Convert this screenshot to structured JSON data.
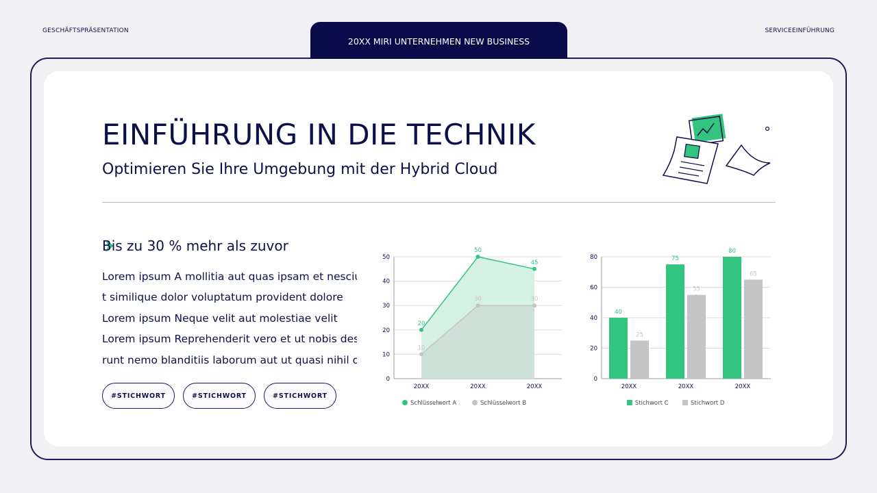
{
  "header": {
    "left_label": "GESCHÄFTSPRÄSENTATION",
    "tab_label": "20XX MIRI UNTERNEHMEN NEW BUSINESS",
    "right_label": "SERVICEEINFÜHRUNG"
  },
  "main": {
    "title": "EINFÜHRUNG IN DIE TECHNIK",
    "subtitle": "Optimieren Sie Ihre Umgebung mit der Hybrid Cloud",
    "heading": "Bis zu 30 % mehr als zuvor",
    "body_lines": [
      "Lorem ipsum A mollitia aut quas ipsam et nesciun",
      "t similique dolor voluptatum provident dolore",
      "Lorem ipsum Neque velit aut molestiae velit",
      "Lorem ipsum Reprehenderit vero et ut nobis dese",
      "runt nemo blanditiis laborum aut ut quasi nihil op"
    ],
    "tags": [
      "#STICHWORT",
      "#STICHWORT",
      "#STICHWORT"
    ]
  },
  "icons": {
    "heading_bullet": "arrow-right-icon",
    "illustration": "documents-chart-illustration"
  },
  "colors": {
    "navy": "#0a0a4a",
    "green": "#33c47f",
    "gray": "#c4c4c4"
  },
  "chart_data": [
    {
      "type": "area",
      "categories": [
        "20XX",
        "20XX",
        "20XX"
      ],
      "series": [
        {
          "name": "Schlüsselwort A",
          "values": [
            20,
            50,
            45
          ],
          "color": "#33c47f"
        },
        {
          "name": "Schlüsselwort B",
          "values": [
            10,
            30,
            30
          ],
          "color": "#c4c4c4"
        }
      ],
      "ylim": [
        0,
        50
      ],
      "yticks": [
        0,
        10,
        20,
        30,
        40,
        50
      ],
      "grid": true,
      "legend": "bottom"
    },
    {
      "type": "bar",
      "categories": [
        "20XX",
        "20XX",
        "20XX"
      ],
      "series": [
        {
          "name": "Stichwort C",
          "values": [
            40,
            75,
            80
          ],
          "color": "#33c47f"
        },
        {
          "name": "Stichwort D",
          "values": [
            25,
            55,
            65
          ],
          "color": "#c4c4c4"
        }
      ],
      "ylim": [
        0,
        80
      ],
      "yticks": [
        0,
        20,
        40,
        60,
        80
      ],
      "grid": true,
      "legend": "bottom"
    }
  ]
}
